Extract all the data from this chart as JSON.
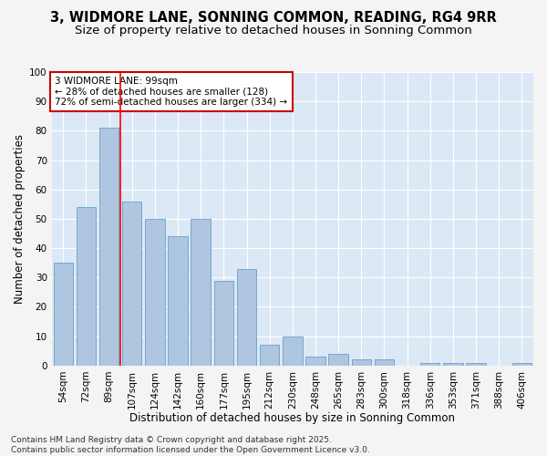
{
  "title": "3, WIDMORE LANE, SONNING COMMON, READING, RG4 9RR",
  "subtitle": "Size of property relative to detached houses in Sonning Common",
  "xlabel": "Distribution of detached houses by size in Sonning Common",
  "ylabel": "Number of detached properties",
  "categories": [
    "54sqm",
    "72sqm",
    "89sqm",
    "107sqm",
    "124sqm",
    "142sqm",
    "160sqm",
    "177sqm",
    "195sqm",
    "212sqm",
    "230sqm",
    "248sqm",
    "265sqm",
    "283sqm",
    "300sqm",
    "318sqm",
    "336sqm",
    "353sqm",
    "371sqm",
    "388sqm",
    "406sqm"
  ],
  "values": [
    35,
    54,
    81,
    56,
    50,
    44,
    50,
    29,
    33,
    7,
    10,
    3,
    4,
    2,
    2,
    0,
    1,
    1,
    1,
    0,
    1
  ],
  "bar_color": "#aec6e0",
  "bar_edge_color": "#6aa0cc",
  "red_line_x": 2.5,
  "annotation_text": "3 WIDMORE LANE: 99sqm\n← 28% of detached houses are smaller (128)\n72% of semi-detached houses are larger (334) →",
  "annotation_box_facecolor": "#ffffff",
  "annotation_box_edgecolor": "#cc0000",
  "ylim": [
    0,
    100
  ],
  "yticks": [
    0,
    10,
    20,
    30,
    40,
    50,
    60,
    70,
    80,
    90,
    100
  ],
  "bg_color": "#dce8f5",
  "grid_color": "#ffffff",
  "fig_facecolor": "#f4f4f4",
  "footer": "Contains HM Land Registry data © Crown copyright and database right 2025.\nContains public sector information licensed under the Open Government Licence v3.0.",
  "title_fontsize": 10.5,
  "subtitle_fontsize": 9.5,
  "axis_label_fontsize": 8.5,
  "tick_fontsize": 7.5,
  "annotation_fontsize": 7.5,
  "footer_fontsize": 6.5
}
